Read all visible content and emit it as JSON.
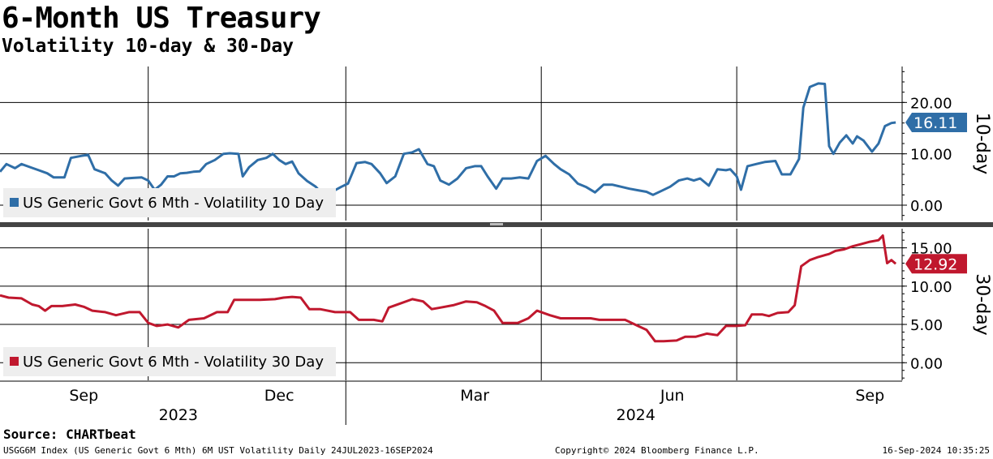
{
  "title": "6-Month US Treasury",
  "subtitle": "Volatility 10-day & 30-Day",
  "source": "Source: CHARTbeat",
  "footer": {
    "left": "USGG6M Index (US Generic Govt 6 Mth) 6M UST Volatility  Daily 24JUL2023-16SEP2024",
    "middle": "Copyright© 2024 Bloomberg Finance L.P.",
    "right": "16-Sep-2024 10:35:25"
  },
  "colors": {
    "vol10": "#2f6ea7",
    "vol30": "#c0182e",
    "grid": "#000000",
    "legend_bg": "#eeeeee"
  },
  "chart_data": [
    {
      "type": "line",
      "panel": "top",
      "ylabel": "10-day",
      "yticks": [
        "20.00",
        "10.00",
        "0.00"
      ],
      "ytick_values": [
        20,
        10,
        0
      ],
      "ylim": [
        -3,
        27
      ],
      "legend": "US Generic Govt 6 Mth - Volatility 10 Day",
      "last_value_label": "16.11",
      "last_value": 16.11,
      "series": [
        {
          "name": "US Generic Govt 6 Mth - Volatility 10 Day",
          "color": "#2f6ea7",
          "points": [
            [
              "2023-07-24",
              6.5
            ],
            [
              "2023-07-27",
              8.0
            ],
            [
              "2023-07-31",
              7.2
            ],
            [
              "2023-08-03",
              8.0
            ],
            [
              "2023-08-07",
              7.4
            ],
            [
              "2023-08-11",
              6.8
            ],
            [
              "2023-08-15",
              6.2
            ],
            [
              "2023-08-18",
              5.4
            ],
            [
              "2023-08-23",
              5.4
            ],
            [
              "2023-08-26",
              9.2
            ],
            [
              "2023-08-31",
              9.6
            ],
            [
              "2023-09-03",
              9.8
            ],
            [
              "2023-09-06",
              7.0
            ],
            [
              "2023-09-11",
              6.2
            ],
            [
              "2023-09-14",
              4.8
            ],
            [
              "2023-09-17",
              3.8
            ],
            [
              "2023-09-20",
              5.2
            ],
            [
              "2023-09-24",
              5.3
            ],
            [
              "2023-09-28",
              5.4
            ],
            [
              "2023-10-01",
              4.8
            ],
            [
              "2023-10-04",
              3.0
            ],
            [
              "2023-10-07",
              4.0
            ],
            [
              "2023-10-10",
              5.6
            ],
            [
              "2023-10-13",
              5.6
            ],
            [
              "2023-10-16",
              6.2
            ],
            [
              "2023-10-19",
              6.3
            ],
            [
              "2023-10-22",
              6.5
            ],
            [
              "2023-10-25",
              6.6
            ],
            [
              "2023-10-28",
              8.0
            ],
            [
              "2023-11-01",
              8.8
            ],
            [
              "2023-11-05",
              10.0
            ],
            [
              "2023-11-08",
              10.1
            ],
            [
              "2023-11-12",
              10.0
            ],
            [
              "2023-11-14",
              5.6
            ],
            [
              "2023-11-17",
              7.4
            ],
            [
              "2023-11-21",
              8.8
            ],
            [
              "2023-11-25",
              9.2
            ],
            [
              "2023-11-28",
              10.0
            ],
            [
              "2023-12-01",
              8.8
            ],
            [
              "2023-12-04",
              8.0
            ],
            [
              "2023-12-07",
              8.5
            ],
            [
              "2023-12-10",
              6.2
            ],
            [
              "2023-12-14",
              4.7
            ],
            [
              "2023-12-18",
              3.6
            ],
            [
              "2023-12-21",
              2.2
            ],
            [
              "2023-12-26",
              2.7
            ],
            [
              "2023-12-30",
              3.6
            ],
            [
              "2024-01-02",
              4.2
            ],
            [
              "2024-01-06",
              8.2
            ],
            [
              "2024-01-10",
              8.4
            ],
            [
              "2024-01-13",
              8.0
            ],
            [
              "2024-01-17",
              6.2
            ],
            [
              "2024-01-20",
              4.3
            ],
            [
              "2024-01-24",
              5.6
            ],
            [
              "2024-01-28",
              10.0
            ],
            [
              "2024-02-01",
              10.3
            ],
            [
              "2024-02-04",
              10.9
            ],
            [
              "2024-02-08",
              8.0
            ],
            [
              "2024-02-11",
              7.6
            ],
            [
              "2024-02-14",
              4.8
            ],
            [
              "2024-02-18",
              4.0
            ],
            [
              "2024-02-22",
              5.2
            ],
            [
              "2024-02-26",
              7.2
            ],
            [
              "2024-03-01",
              7.6
            ],
            [
              "2024-03-04",
              7.6
            ],
            [
              "2024-03-07",
              5.6
            ],
            [
              "2024-03-11",
              3.2
            ],
            [
              "2024-03-14",
              5.2
            ],
            [
              "2024-03-18",
              5.2
            ],
            [
              "2024-03-22",
              5.4
            ],
            [
              "2024-03-26",
              5.2
            ],
            [
              "2024-03-30",
              8.6
            ],
            [
              "2024-04-03",
              9.6
            ],
            [
              "2024-04-07",
              8.0
            ],
            [
              "2024-04-10",
              7.0
            ],
            [
              "2024-04-14",
              6.0
            ],
            [
              "2024-04-18",
              4.2
            ],
            [
              "2024-04-22",
              3.5
            ],
            [
              "2024-04-26",
              2.5
            ],
            [
              "2024-04-30",
              4.0
            ],
            [
              "2024-05-04",
              4.0
            ],
            [
              "2024-05-08",
              3.6
            ],
            [
              "2024-05-12",
              3.2
            ],
            [
              "2024-05-16",
              2.9
            ],
            [
              "2024-05-20",
              2.6
            ],
            [
              "2024-05-23",
              2.0
            ],
            [
              "2024-05-27",
              2.8
            ],
            [
              "2024-05-31",
              3.6
            ],
            [
              "2024-06-04",
              4.8
            ],
            [
              "2024-06-08",
              5.2
            ],
            [
              "2024-06-11",
              4.8
            ],
            [
              "2024-06-14",
              5.2
            ],
            [
              "2024-06-18",
              3.8
            ],
            [
              "2024-06-22",
              7.0
            ],
            [
              "2024-06-26",
              6.8
            ],
            [
              "2024-06-28",
              7.0
            ],
            [
              "2024-07-01",
              5.6
            ],
            [
              "2024-07-03",
              3.0
            ],
            [
              "2024-07-06",
              7.6
            ],
            [
              "2024-07-10",
              8.0
            ],
            [
              "2024-07-14",
              8.4
            ],
            [
              "2024-07-19",
              8.6
            ],
            [
              "2024-07-22",
              6.0
            ],
            [
              "2024-07-26",
              6.0
            ],
            [
              "2024-07-30",
              9.0
            ],
            [
              "2024-08-01",
              19.0
            ],
            [
              "2024-08-04",
              23.0
            ],
            [
              "2024-08-08",
              23.7
            ],
            [
              "2024-08-11",
              23.6
            ],
            [
              "2024-08-13",
              11.5
            ],
            [
              "2024-08-15",
              10.0
            ],
            [
              "2024-08-18",
              12.2
            ],
            [
              "2024-08-21",
              13.6
            ],
            [
              "2024-08-24",
              12.0
            ],
            [
              "2024-08-26",
              13.4
            ],
            [
              "2024-08-29",
              12.6
            ],
            [
              "2024-09-02",
              10.4
            ],
            [
              "2024-09-05",
              12.0
            ],
            [
              "2024-09-08",
              15.4
            ],
            [
              "2024-09-11",
              16.0
            ],
            [
              "2024-09-13",
              16.11
            ]
          ]
        }
      ]
    },
    {
      "type": "line",
      "panel": "bottom",
      "ylabel": "30-day",
      "yticks": [
        "15.00",
        "10.00",
        "5.00",
        "0.00"
      ],
      "ytick_values": [
        15,
        10,
        5,
        0
      ],
      "ylim": [
        -2.3,
        17.5
      ],
      "legend": "US Generic Govt 6 Mth - Volatility 30 Day",
      "last_value_label": "12.92",
      "last_value": 12.92,
      "series": [
        {
          "name": "US Generic Govt 6 Mth - Volatility 30 Day",
          "color": "#c0182e",
          "points": [
            [
              "2023-07-24",
              8.8
            ],
            [
              "2023-07-28",
              8.5
            ],
            [
              "2023-08-03",
              8.4
            ],
            [
              "2023-08-08",
              7.6
            ],
            [
              "2023-08-11",
              7.4
            ],
            [
              "2023-08-14",
              6.8
            ],
            [
              "2023-08-17",
              7.4
            ],
            [
              "2023-08-22",
              7.4
            ],
            [
              "2023-08-28",
              7.6
            ],
            [
              "2023-09-01",
              7.3
            ],
            [
              "2023-09-05",
              6.8
            ],
            [
              "2023-09-11",
              6.6
            ],
            [
              "2023-09-16",
              6.2
            ],
            [
              "2023-09-22",
              6.6
            ],
            [
              "2023-09-27",
              6.6
            ],
            [
              "2023-10-01",
              5.2
            ],
            [
              "2023-10-05",
              4.8
            ],
            [
              "2023-10-10",
              5.0
            ],
            [
              "2023-10-15",
              4.6
            ],
            [
              "2023-10-20",
              5.6
            ],
            [
              "2023-10-27",
              5.8
            ],
            [
              "2023-11-02",
              6.6
            ],
            [
              "2023-11-07",
              6.6
            ],
            [
              "2023-11-10",
              8.2
            ],
            [
              "2023-11-15",
              8.2
            ],
            [
              "2023-11-22",
              8.2
            ],
            [
              "2023-11-29",
              8.3
            ],
            [
              "2023-12-03",
              8.5
            ],
            [
              "2023-12-07",
              8.6
            ],
            [
              "2023-12-11",
              8.5
            ],
            [
              "2023-12-15",
              7.0
            ],
            [
              "2023-12-20",
              7.0
            ],
            [
              "2023-12-27",
              6.6
            ],
            [
              "2024-01-03",
              6.6
            ],
            [
              "2024-01-07",
              5.6
            ],
            [
              "2024-01-14",
              5.6
            ],
            [
              "2024-01-18",
              5.4
            ],
            [
              "2024-01-21",
              7.2
            ],
            [
              "2024-01-26",
              7.7
            ],
            [
              "2024-02-01",
              8.3
            ],
            [
              "2024-02-06",
              8.0
            ],
            [
              "2024-02-10",
              7.0
            ],
            [
              "2024-02-14",
              7.2
            ],
            [
              "2024-02-20",
              7.5
            ],
            [
              "2024-02-26",
              8.0
            ],
            [
              "2024-03-02",
              7.9
            ],
            [
              "2024-03-06",
              7.4
            ],
            [
              "2024-03-10",
              6.8
            ],
            [
              "2024-03-14",
              5.2
            ],
            [
              "2024-03-21",
              5.2
            ],
            [
              "2024-03-26",
              5.8
            ],
            [
              "2024-03-30",
              6.8
            ],
            [
              "2024-04-05",
              6.2
            ],
            [
              "2024-04-10",
              5.8
            ],
            [
              "2024-04-18",
              5.8
            ],
            [
              "2024-04-24",
              5.8
            ],
            [
              "2024-04-28",
              5.6
            ],
            [
              "2024-05-04",
              5.6
            ],
            [
              "2024-05-10",
              5.6
            ],
            [
              "2024-05-16",
              4.8
            ],
            [
              "2024-05-20",
              4.3
            ],
            [
              "2024-05-24",
              2.8
            ],
            [
              "2024-05-28",
              2.8
            ],
            [
              "2024-06-03",
              2.9
            ],
            [
              "2024-06-07",
              3.4
            ],
            [
              "2024-06-12",
              3.4
            ],
            [
              "2024-06-17",
              3.8
            ],
            [
              "2024-06-22",
              3.6
            ],
            [
              "2024-06-26",
              4.8
            ],
            [
              "2024-07-01",
              4.8
            ],
            [
              "2024-07-05",
              4.9
            ],
            [
              "2024-07-08",
              6.3
            ],
            [
              "2024-07-13",
              6.3
            ],
            [
              "2024-07-16",
              6.1
            ],
            [
              "2024-07-20",
              6.5
            ],
            [
              "2024-07-25",
              6.6
            ],
            [
              "2024-07-28",
              7.5
            ],
            [
              "2024-07-31",
              12.6
            ],
            [
              "2024-08-04",
              13.4
            ],
            [
              "2024-08-08",
              13.8
            ],
            [
              "2024-08-13",
              14.2
            ],
            [
              "2024-08-16",
              14.6
            ],
            [
              "2024-08-20",
              14.8
            ],
            [
              "2024-08-24",
              15.2
            ],
            [
              "2024-08-28",
              15.5
            ],
            [
              "2024-09-01",
              15.8
            ],
            [
              "2024-09-05",
              16.0
            ],
            [
              "2024-09-07",
              16.6
            ],
            [
              "2024-09-09",
              13.0
            ],
            [
              "2024-09-11",
              13.4
            ],
            [
              "2024-09-13",
              12.92
            ]
          ]
        }
      ]
    }
  ],
  "x_axis": {
    "months": [
      {
        "label": "Sep",
        "date": "2023-09-01"
      },
      {
        "label": "Dec",
        "date": "2023-12-01"
      },
      {
        "label": "Mar",
        "date": "2024-03-01"
      },
      {
        "label": "Jun",
        "date": "2024-06-01"
      },
      {
        "label": "Sep",
        "date": "2024-09-01"
      }
    ],
    "gridlines": [
      "2023-10-01",
      "2024-01-01",
      "2024-04-01",
      "2024-07-01"
    ],
    "years": [
      {
        "label": "2023",
        "date": "2023-10-15"
      },
      {
        "label": "2024",
        "date": "2024-05-15"
      }
    ],
    "year_divider": "2024-01-01",
    "range": [
      "2023-07-24",
      "2024-09-16"
    ]
  }
}
